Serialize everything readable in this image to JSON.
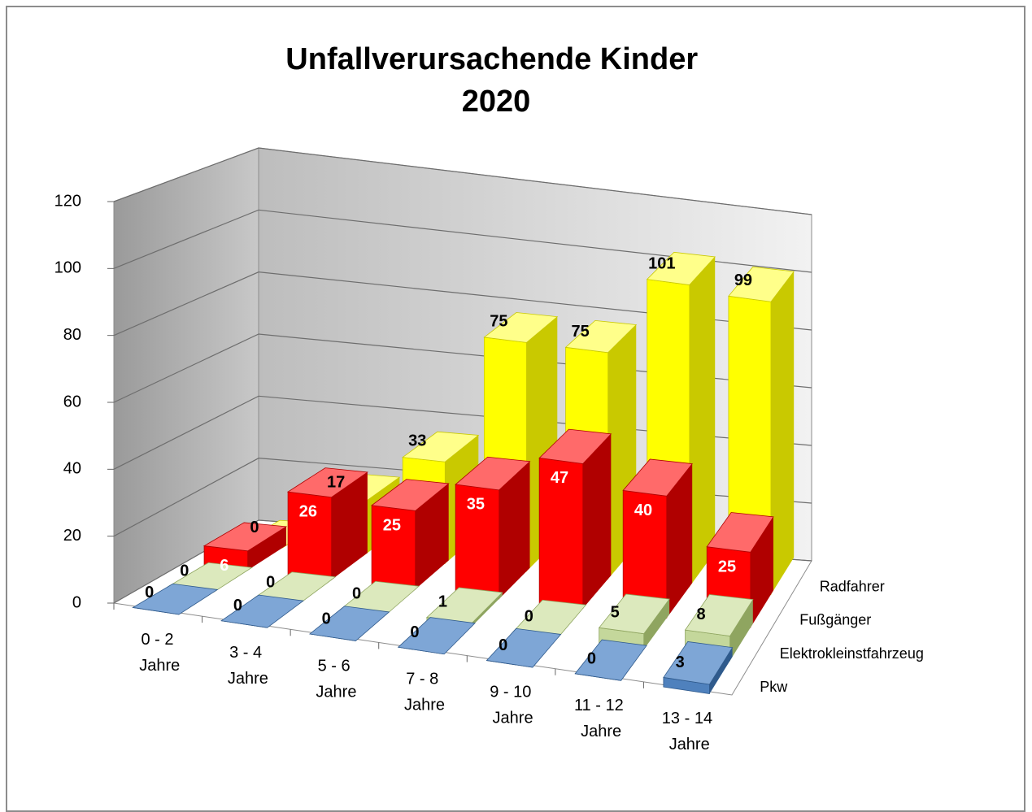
{
  "chart_data": {
    "type": "bar3d",
    "title": "Unfallverursachende Kinder 2020",
    "categories": [
      "0 - 2 Jahre",
      "3 - 4 Jahre",
      "5 - 6 Jahre",
      "7 - 8 Jahre",
      "9 - 10 Jahre",
      "11 - 12 Jahre",
      "13 - 14 Jahre"
    ],
    "series": [
      {
        "name": "Radfahrer",
        "color": "#ffff00",
        "side_color": "#c9c900",
        "top_color": "#ffff8a",
        "label_color": "#000000",
        "values": [
          0,
          17,
          33,
          75,
          75,
          101,
          99
        ]
      },
      {
        "name": "Fußgänger",
        "color": "#ff0000",
        "side_color": "#b00000",
        "top_color": "#ff6a6a",
        "label_color": "#ffffff",
        "values": [
          6,
          26,
          25,
          35,
          47,
          40,
          25
        ]
      },
      {
        "name": "Elektrokleinstfahrzeug",
        "color": "#c4d79b",
        "side_color": "#8fa560",
        "top_color": "#dce9bd",
        "label_color": "#000000",
        "values": [
          0,
          0,
          0,
          1,
          0,
          5,
          8
        ]
      },
      {
        "name": "Pkw",
        "color": "#4f81bd",
        "side_color": "#2f5a8c",
        "top_color": "#7ea6d6",
        "label_color": "#000000",
        "values": [
          0,
          0,
          0,
          0,
          0,
          0,
          3
        ]
      }
    ],
    "ylim": [
      0,
      120
    ],
    "yticks": [
      0,
      20,
      40,
      60,
      80,
      100,
      120
    ],
    "grid": true
  }
}
